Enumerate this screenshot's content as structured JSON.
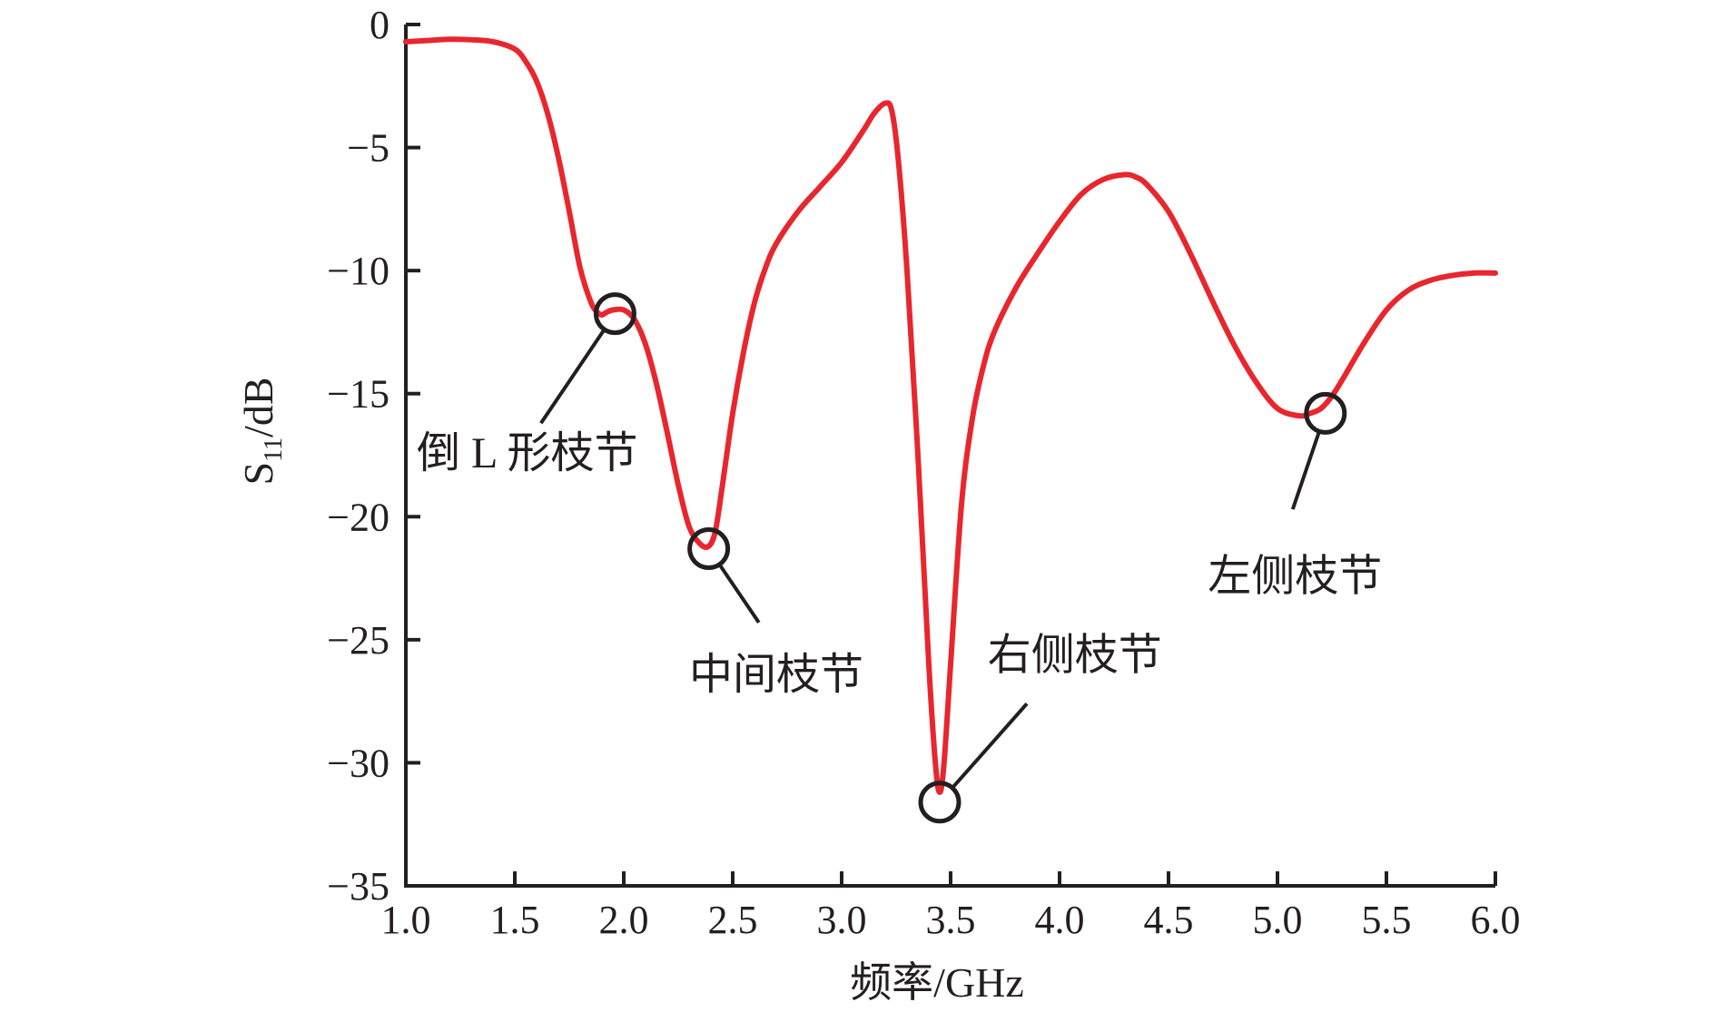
{
  "chart_data": {
    "type": "line",
    "xlabel": "频率/GHz",
    "ylabel_main": "S",
    "ylabel_sub": "11",
    "ylabel_unit": "/dB",
    "xlim": [
      1.0,
      6.0
    ],
    "ylim": [
      -35,
      0
    ],
    "x_ticks": [
      1.0,
      1.5,
      2.0,
      2.5,
      3.0,
      3.5,
      4.0,
      4.5,
      5.0,
      5.5,
      6.0
    ],
    "x_tick_labels": [
      "1.0",
      "1.5",
      "2.0",
      "2.5",
      "3.0",
      "3.5",
      "4.0",
      "4.5",
      "5.0",
      "5.5",
      "6.0"
    ],
    "y_ticks": [
      0,
      -5,
      -10,
      -15,
      -20,
      -25,
      -30,
      -35
    ],
    "y_tick_labels": [
      "0",
      "−5",
      "−10",
      "−15",
      "−20",
      "−25",
      "−30",
      "−35"
    ],
    "grid": false,
    "line_color": "#e8262d",
    "series": [
      {
        "x": [
          1.0,
          1.1,
          1.2,
          1.3,
          1.4,
          1.5,
          1.55,
          1.6,
          1.65,
          1.7,
          1.75,
          1.8,
          1.85,
          1.88,
          1.9,
          1.92,
          1.95,
          2.0,
          2.05,
          2.1,
          2.15,
          2.2,
          2.25,
          2.3,
          2.35,
          2.39,
          2.42,
          2.45,
          2.5,
          2.55,
          2.6,
          2.65,
          2.7,
          2.8,
          2.9,
          3.0,
          3.1,
          3.15,
          3.2,
          3.23,
          3.26,
          3.3,
          3.35,
          3.4,
          3.43,
          3.45,
          3.47,
          3.5,
          3.55,
          3.6,
          3.65,
          3.7,
          3.8,
          3.9,
          4.0,
          4.1,
          4.2,
          4.3,
          4.35,
          4.4,
          4.5,
          4.6,
          4.7,
          4.8,
          4.9,
          5.0,
          5.1,
          5.15,
          5.2,
          5.25,
          5.3,
          5.4,
          5.5,
          5.6,
          5.7,
          5.8,
          5.9,
          6.0
        ],
        "y": [
          -0.7,
          -0.65,
          -0.6,
          -0.62,
          -0.7,
          -1.0,
          -1.5,
          -2.3,
          -3.6,
          -5.4,
          -7.6,
          -9.9,
          -11.3,
          -11.7,
          -11.8,
          -11.7,
          -11.6,
          -11.6,
          -12.0,
          -13.0,
          -14.6,
          -16.6,
          -18.7,
          -20.4,
          -21.1,
          -21.2,
          -20.6,
          -18.9,
          -15.8,
          -13.3,
          -11.3,
          -9.9,
          -8.9,
          -7.6,
          -6.6,
          -5.6,
          -4.3,
          -3.6,
          -3.2,
          -3.5,
          -5.5,
          -10.0,
          -17.5,
          -26.0,
          -30.0,
          -31.2,
          -30.0,
          -26.0,
          -19.5,
          -16.0,
          -13.9,
          -12.5,
          -10.7,
          -9.3,
          -8.0,
          -6.9,
          -6.3,
          -6.1,
          -6.2,
          -6.5,
          -7.6,
          -9.3,
          -11.2,
          -13.0,
          -14.5,
          -15.6,
          -15.9,
          -15.8,
          -15.6,
          -15.1,
          -14.4,
          -12.9,
          -11.6,
          -10.8,
          -10.4,
          -10.2,
          -10.1,
          -10.1
        ]
      }
    ],
    "annotations": [
      {
        "label": "倒 L 形枝节",
        "x": 1.96,
        "y": -11.75,
        "text_x": 1.05,
        "text_y": -18.0,
        "line_end_x": 1.62,
        "line_end_y": -16.2
      },
      {
        "label": "中间枝节",
        "x": 2.39,
        "y": -21.3,
        "text_x": 2.3,
        "text_y": -27.0,
        "line_end_x": 2.62,
        "line_end_y": -24.3
      },
      {
        "label": "右侧枝节",
        "x": 3.45,
        "y": -31.6,
        "text_x": 3.67,
        "text_y": -26.2,
        "line_end_x": 3.85,
        "line_end_y": -27.6
      },
      {
        "label": "左侧枝节",
        "x": 5.22,
        "y": -15.8,
        "text_x": 4.68,
        "text_y": -23.0,
        "line_end_x": 5.07,
        "line_end_y": -19.7
      }
    ]
  }
}
